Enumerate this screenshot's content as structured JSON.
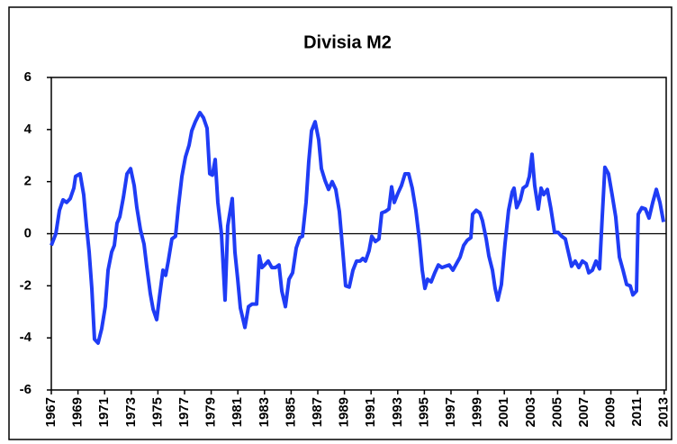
{
  "chart_data": {
    "type": "line",
    "title": "Divisia M2",
    "x": [
      1967.0,
      1967.34,
      1967.61,
      1967.88,
      1968.15,
      1968.42,
      1968.69,
      1968.82,
      1969.16,
      1969.43,
      1969.64,
      1969.84,
      1970.04,
      1970.24,
      1970.51,
      1970.78,
      1971.05,
      1971.26,
      1971.53,
      1971.73,
      1971.93,
      1972.14,
      1972.41,
      1972.68,
      1972.95,
      1973.22,
      1973.42,
      1973.69,
      1973.96,
      1974.16,
      1974.43,
      1974.64,
      1974.91,
      1975.11,
      1975.38,
      1975.58,
      1975.78,
      1976.05,
      1976.32,
      1976.53,
      1976.8,
      1977.07,
      1977.34,
      1977.54,
      1977.81,
      1978.15,
      1978.42,
      1978.69,
      1978.89,
      1979.09,
      1979.3,
      1979.5,
      1979.77,
      1980.04,
      1980.24,
      1980.58,
      1980.78,
      1980.99,
      1981.19,
      1981.53,
      1981.8,
      1982.07,
      1982.41,
      1982.61,
      1982.81,
      1983.01,
      1983.28,
      1983.55,
      1983.82,
      1984.09,
      1984.3,
      1984.57,
      1984.84,
      1985.11,
      1985.38,
      1985.65,
      1985.85,
      1986.12,
      1986.32,
      1986.53,
      1986.8,
      1987.07,
      1987.27,
      1987.54,
      1987.81,
      1988.08,
      1988.35,
      1988.62,
      1988.89,
      1989.09,
      1989.36,
      1989.64,
      1989.91,
      1990.18,
      1990.38,
      1990.58,
      1990.85,
      1991.05,
      1991.32,
      1991.59,
      1991.8,
      1992.07,
      1992.34,
      1992.54,
      1992.74,
      1993.01,
      1993.28,
      1993.55,
      1993.82,
      1994.09,
      1994.36,
      1994.64,
      1994.84,
      1995.04,
      1995.24,
      1995.51,
      1995.78,
      1996.05,
      1996.32,
      1996.59,
      1996.86,
      1997.14,
      1997.41,
      1997.68,
      1997.95,
      1998.22,
      1998.49,
      1998.62,
      1998.89,
      1999.16,
      1999.36,
      1999.64,
      1999.84,
      2000.11,
      2000.31,
      2000.51,
      2000.78,
      2001.05,
      2001.32,
      2001.59,
      2001.73,
      2001.93,
      2002.2,
      2002.41,
      2002.68,
      2002.88,
      2003.08,
      2003.28,
      2003.55,
      2003.76,
      2003.96,
      2004.23,
      2004.5,
      2004.77,
      2005.04,
      2005.31,
      2005.58,
      2005.78,
      2006.05,
      2006.32,
      2006.59,
      2006.86,
      2007.14,
      2007.34,
      2007.61,
      2007.88,
      2008.15,
      2008.35,
      2008.55,
      2008.82,
      2009.09,
      2009.36,
      2009.64,
      2009.91,
      2010.18,
      2010.45,
      2010.65,
      2010.92,
      2011.05,
      2011.32,
      2011.59,
      2011.86,
      2012.14,
      2012.41,
      2012.68,
      2012.95
    ],
    "series": [
      {
        "color": "#1f3cf5",
        "values": [
          -0.45,
          0,
          0.9,
          1.3,
          1.2,
          1.35,
          1.75,
          2.2,
          2.3,
          1.5,
          0.3,
          -0.7,
          -2.1,
          -4.05,
          -4.2,
          -3.65,
          -2.8,
          -1.4,
          -0.7,
          -0.45,
          0.4,
          0.65,
          1.4,
          2.3,
          2.5,
          1.85,
          1.0,
          0.15,
          -0.4,
          -1.25,
          -2.3,
          -2.9,
          -3.3,
          -2.45,
          -1.4,
          -1.6,
          -1.05,
          -0.2,
          -0.1,
          1.0,
          2.2,
          2.95,
          3.4,
          3.95,
          4.3,
          4.65,
          4.45,
          4.05,
          2.3,
          2.25,
          2.85,
          1.2,
          0,
          -2.55,
          0.3,
          1.35,
          -0.7,
          -1.75,
          -2.85,
          -3.6,
          -2.8,
          -2.7,
          -2.7,
          -0.85,
          -1.3,
          -1.2,
          -1.05,
          -1.3,
          -1.3,
          -1.2,
          -2.2,
          -2.8,
          -1.75,
          -1.5,
          -0.55,
          -0.15,
          -0.1,
          1.2,
          2.75,
          3.95,
          4.3,
          3.6,
          2.5,
          2.05,
          1.7,
          2.0,
          1.7,
          0.85,
          -0.75,
          -2.0,
          -2.05,
          -1.4,
          -1.05,
          -1.05,
          -0.95,
          -1.05,
          -0.65,
          -0.1,
          -0.3,
          -0.2,
          0.8,
          0.85,
          0.95,
          1.8,
          1.2,
          1.55,
          1.85,
          2.3,
          2.3,
          1.75,
          0.9,
          -0.3,
          -1.4,
          -2.1,
          -1.75,
          -1.85,
          -1.5,
          -1.2,
          -1.3,
          -1.25,
          -1.2,
          -1.4,
          -1.15,
          -0.9,
          -0.45,
          -0.25,
          -0.15,
          0.75,
          0.9,
          0.8,
          0.5,
          -0.2,
          -0.85,
          -1.4,
          -2.1,
          -2.55,
          -1.95,
          -0.4,
          0.9,
          1.6,
          1.75,
          1.0,
          1.3,
          1.75,
          1.85,
          2.2,
          3.05,
          1.85,
          0.95,
          1.75,
          1.5,
          1.7,
          0.95,
          0.05,
          0.05,
          -0.1,
          -0.2,
          -0.65,
          -1.25,
          -1.05,
          -1.3,
          -1.05,
          -1.15,
          -1.5,
          -1.4,
          -1.05,
          -1.35,
          0.65,
          2.55,
          2.3,
          1.5,
          0.65,
          -0.9,
          -1.4,
          -1.95,
          -2.0,
          -2.35,
          -2.2,
          0.75,
          1.0,
          0.95,
          0.6,
          1.2,
          1.7,
          1.2,
          0.45
        ]
      }
    ],
    "xlim": [
      1967,
      2013.15
    ],
    "xticks": [
      1967,
      1969,
      1971,
      1973,
      1975,
      1977,
      1979,
      1981,
      1983,
      1985,
      1987,
      1989,
      1991,
      1993,
      1995,
      1997,
      1999,
      2001,
      2003,
      2005,
      2007,
      2009,
      2011,
      2013
    ],
    "ylim": [
      -6,
      6
    ],
    "yticks": [
      -6,
      -4,
      -2,
      0,
      2,
      4,
      6
    ],
    "grid": false
  }
}
